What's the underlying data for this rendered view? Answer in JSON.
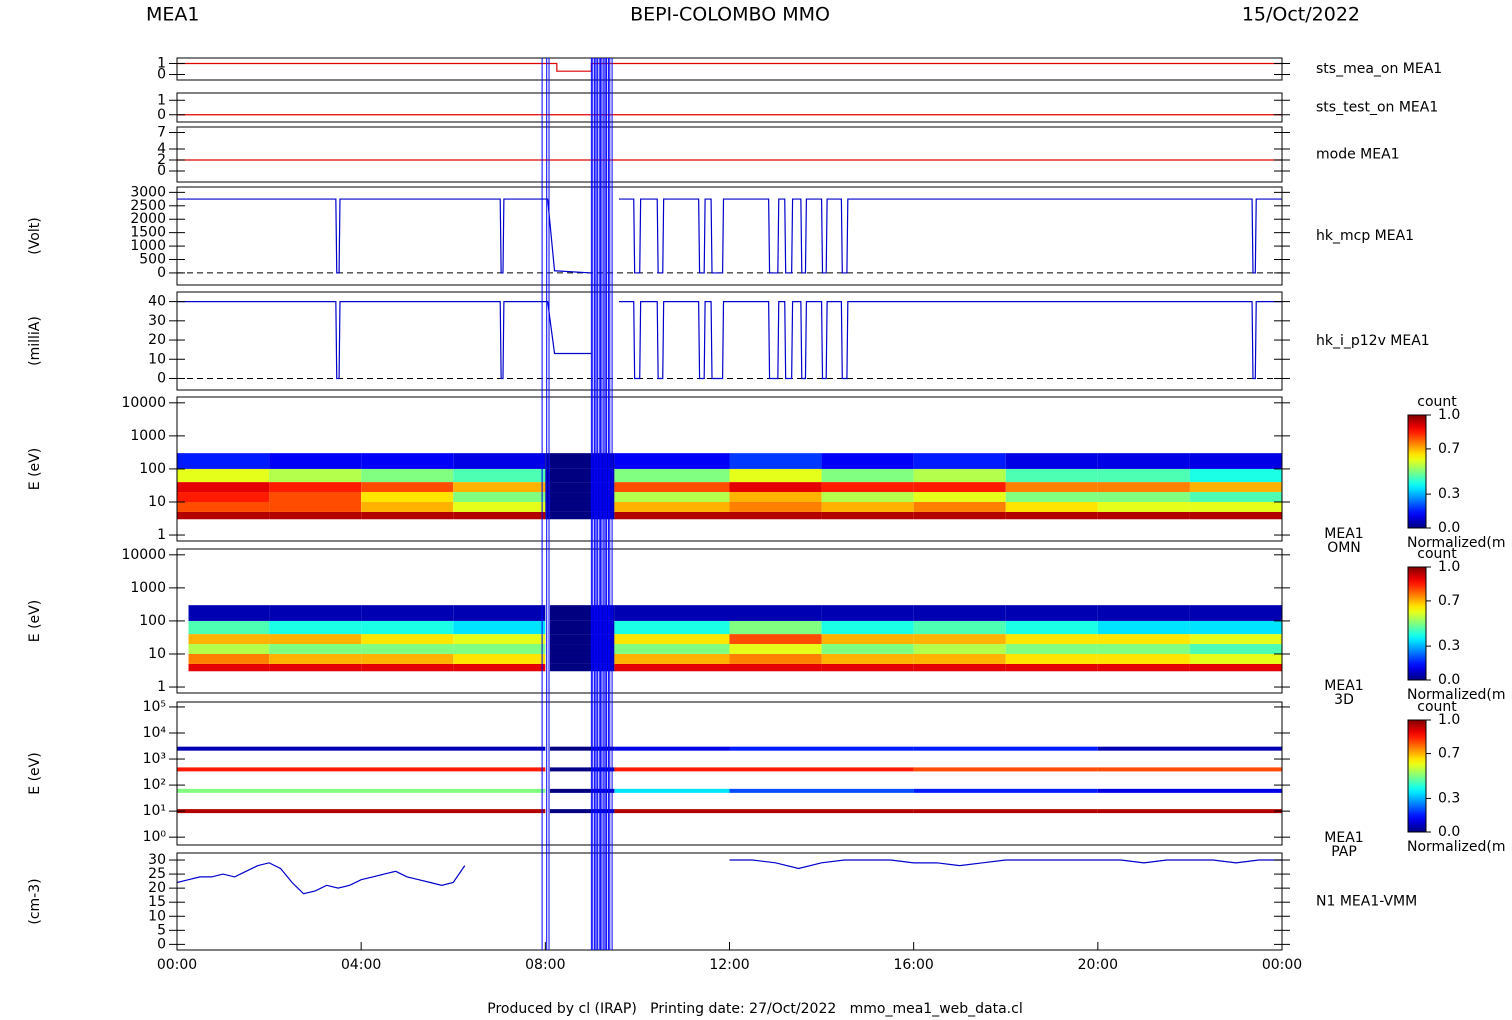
{
  "header": {
    "left": "MEA1",
    "center": "BEPI-COLOMBO MMO",
    "right": "15/Oct/2022"
  },
  "footer": "Produced by cl (IRAP)   Printing date: 27/Oct/2022   mmo_mea1_web_data.cl",
  "time_axis": {
    "xlim": [
      0,
      24
    ],
    "xticks": [
      {
        "value": 0,
        "label": "00:00"
      },
      {
        "value": 4,
        "label": "04:00"
      },
      {
        "value": 8,
        "label": "08:00"
      },
      {
        "value": 12,
        "label": "12:00"
      },
      {
        "value": 16,
        "label": "16:00"
      },
      {
        "value": 20,
        "label": "20:00"
      },
      {
        "value": 24,
        "label": "00:00"
      }
    ]
  },
  "events": {
    "color": "#0000ff",
    "x": [
      7.93,
      8.03,
      8.08,
      9.0,
      9.03,
      9.07,
      9.1,
      9.13,
      9.17,
      9.2,
      9.23,
      9.27,
      9.3,
      9.33,
      9.37,
      9.4,
      9.45
    ]
  },
  "chart_data": [
    {
      "type": "line",
      "label": "sts_mea_on MEA1",
      "label_color": "#e00000",
      "color": "#e00000",
      "ylim": [
        -0.5,
        1.5
      ],
      "yticks": [
        0,
        1
      ],
      "x": [
        0,
        8.25,
        8.25,
        9.0,
        9.0,
        24
      ],
      "values": [
        1,
        1,
        0.3,
        0.3,
        1,
        1
      ]
    },
    {
      "type": "line",
      "label": "sts_test_on MEA1",
      "label_color": "#e00000",
      "color": "#e00000",
      "ylim": [
        -0.5,
        1.5
      ],
      "yticks": [
        0,
        1
      ],
      "x": [
        0,
        24
      ],
      "values": [
        0,
        0
      ]
    },
    {
      "type": "line",
      "label": "mode MEA1",
      "label_color": "#e00000",
      "color": "#e00000",
      "ylim": [
        -2,
        8
      ],
      "yticks": [
        0,
        2,
        4,
        7
      ],
      "x": [
        0,
        24
      ],
      "values": [
        2,
        2
      ]
    },
    {
      "type": "line",
      "label": "hk_mcp MEA1",
      "ylabel": "(Volt)",
      "label_color": "#0000cc",
      "color": "#0000cc",
      "zero_line": true,
      "ylim": [
        -450,
        3200
      ],
      "yticks": [
        0,
        500,
        1000,
        1500,
        2000,
        2500,
        3000
      ],
      "x": [
        0,
        3.45,
        3.47,
        3.52,
        3.54,
        7.02,
        7.04,
        7.08,
        7.1,
        7.95,
        8.05,
        8.2,
        9.0,
        9.2,
        9.6,
        9.92,
        9.94,
        10.05,
        10.07,
        10.43,
        10.45,
        10.55,
        10.57,
        11.33,
        11.35,
        11.45,
        11.47,
        11.6,
        11.62,
        11.85,
        11.87,
        12.85,
        12.87,
        13.05,
        13.07,
        13.2,
        13.22,
        13.35,
        13.37,
        13.55,
        13.57,
        13.65,
        13.67,
        14.0,
        14.02,
        14.1,
        14.12,
        14.43,
        14.45,
        14.55,
        14.57,
        23.35,
        23.37,
        23.42,
        23.44,
        24
      ],
      "values": [
        2750,
        2750,
        0,
        0,
        2750,
        2750,
        0,
        0,
        2750,
        2750,
        2750,
        80,
        0,
        null,
        2750,
        2750,
        0,
        0,
        2750,
        2750,
        0,
        0,
        2750,
        2750,
        0,
        0,
        2750,
        2750,
        0,
        0,
        2750,
        2750,
        0,
        0,
        2750,
        2750,
        0,
        0,
        2750,
        2750,
        0,
        0,
        2750,
        2750,
        0,
        0,
        2750,
        2750,
        0,
        0,
        2750,
        2750,
        0,
        0,
        2750,
        2750
      ]
    },
    {
      "type": "line",
      "label": "hk_i_p12v MEA1",
      "ylabel": "(milliA)",
      "label_color": "#0000cc",
      "color": "#0000cc",
      "zero_line": true,
      "ylim": [
        -6,
        45
      ],
      "yticks": [
        0,
        10,
        20,
        30,
        40
      ],
      "x": [
        0,
        3.45,
        3.47,
        3.52,
        3.54,
        7.02,
        7.04,
        7.08,
        7.1,
        7.95,
        8.05,
        8.2,
        9.0,
        9.2,
        9.6,
        9.92,
        9.94,
        10.05,
        10.07,
        10.43,
        10.45,
        10.55,
        10.57,
        11.33,
        11.35,
        11.45,
        11.47,
        11.6,
        11.62,
        11.85,
        11.87,
        12.85,
        12.87,
        13.05,
        13.07,
        13.2,
        13.22,
        13.35,
        13.37,
        13.55,
        13.57,
        13.65,
        13.67,
        14.0,
        14.02,
        14.1,
        14.12,
        14.43,
        14.45,
        14.55,
        14.57,
        23.35,
        23.37,
        23.42,
        23.44,
        24
      ],
      "values": [
        40,
        40,
        0,
        0,
        40,
        40,
        0,
        0,
        40,
        40,
        40,
        13,
        13,
        null,
        40,
        40,
        0,
        0,
        40,
        40,
        0,
        0,
        40,
        40,
        0,
        0,
        40,
        40,
        0,
        0,
        40,
        40,
        0,
        0,
        40,
        40,
        0,
        0,
        40,
        40,
        0,
        0,
        40,
        40,
        0,
        0,
        40,
        40,
        0,
        0,
        40,
        40,
        0,
        0,
        40,
        40
      ]
    },
    {
      "type": "heatmap",
      "label": [
        "MEA1",
        "OMN"
      ],
      "ylabel": "E (eV)",
      "log": true,
      "ylim": [
        0.66,
        15000
      ],
      "yticks": [
        1,
        10,
        100,
        1000,
        10000
      ],
      "x_edges": [
        0,
        2,
        4,
        6,
        8,
        8.1,
        9,
        9.5,
        12,
        14,
        16,
        18,
        20,
        22,
        24
      ],
      "y_edges": [
        3,
        5,
        10,
        20,
        40,
        100,
        300
      ],
      "z": [
        [
          0.95,
          0.95,
          0.95,
          0.95,
          0,
          0,
          0.05,
          0.95,
          0.95,
          0.95,
          0.95,
          0.95,
          0.95,
          0.95
        ],
        [
          0.8,
          0.8,
          0.7,
          0.6,
          0,
          0,
          0.05,
          0.7,
          0.75,
          0.7,
          0.75,
          0.65,
          0.6,
          0.6
        ],
        [
          0.85,
          0.8,
          0.65,
          0.5,
          0,
          0,
          0.05,
          0.55,
          0.7,
          0.55,
          0.6,
          0.5,
          0.5,
          0.45
        ],
        [
          0.9,
          0.85,
          0.8,
          0.7,
          0,
          0,
          0.05,
          0.8,
          0.9,
          0.85,
          0.85,
          0.75,
          0.75,
          0.7
        ],
        [
          0.6,
          0.55,
          0.5,
          0.45,
          0,
          0,
          0.05,
          0.5,
          0.6,
          0.5,
          0.55,
          0.45,
          0.45,
          0.4
        ],
        [
          0.15,
          0.12,
          0.12,
          0.1,
          0,
          0,
          0.05,
          0.12,
          0.18,
          0.12,
          0.15,
          0.1,
          0.1,
          0.1
        ]
      ],
      "colorbar": {
        "title": "count",
        "label": "Normalized(m",
        "zlim": [
          0,
          1
        ],
        "ticks": [
          {
            "value": 0,
            "label": "0.0"
          },
          0.3,
          0.7,
          {
            "value": 1,
            "label": "1.0"
          }
        ]
      }
    },
    {
      "type": "heatmap",
      "label": [
        "MEA1",
        "3D"
      ],
      "ylabel": "E (eV)",
      "log": true,
      "ylim": [
        0.66,
        15000
      ],
      "yticks": [
        1,
        10,
        100,
        1000,
        10000
      ],
      "x_edges": [
        0.25,
        2,
        4,
        6,
        8,
        8.1,
        9,
        9.5,
        12,
        14,
        16,
        18,
        20,
        22,
        24
      ],
      "y_edges": [
        3,
        5,
        10,
        20,
        40,
        100,
        300
      ],
      "z": [
        [
          0.9,
          0.9,
          0.9,
          0.9,
          null,
          0,
          0.05,
          0.9,
          0.9,
          0.9,
          0.9,
          0.9,
          0.9,
          0.9
        ],
        [
          0.75,
          0.7,
          0.7,
          0.65,
          null,
          0,
          0.05,
          0.7,
          0.75,
          0.7,
          0.7,
          0.65,
          0.65,
          0.6
        ],
        [
          0.55,
          0.5,
          0.5,
          0.5,
          null,
          0,
          0.05,
          0.5,
          0.6,
          0.5,
          0.55,
          0.5,
          0.5,
          0.45
        ],
        [
          0.7,
          0.7,
          0.65,
          0.6,
          null,
          0,
          0.05,
          0.65,
          0.8,
          0.7,
          0.7,
          0.65,
          0.65,
          0.6
        ],
        [
          0.45,
          0.4,
          0.4,
          0.35,
          null,
          0,
          0.05,
          0.4,
          0.5,
          0.4,
          0.45,
          0.4,
          0.35,
          0.35
        ],
        [
          0.05,
          0.05,
          0.05,
          0.05,
          null,
          0,
          0.05,
          0.05,
          0.05,
          0.05,
          0.05,
          0.05,
          0.05,
          0.05
        ]
      ],
      "colorbar": {
        "title": "count",
        "label": "Normalized(m",
        "zlim": [
          0,
          1
        ],
        "ticks": [
          {
            "value": 0,
            "label": "0.0"
          },
          0.3,
          0.7,
          {
            "value": 1,
            "label": "1.0"
          }
        ]
      }
    },
    {
      "type": "heatmap",
      "label": [
        "MEA1",
        "PAP"
      ],
      "ylabel": "E (eV)",
      "log": true,
      "ylim": [
        0.5,
        155000
      ],
      "yticks": [
        {
          "value": 1,
          "label": "10⁰"
        },
        {
          "value": 10,
          "label": "10¹"
        },
        {
          "value": 100,
          "label": "10²"
        },
        {
          "value": 1000,
          "label": "10³"
        },
        {
          "value": 10000,
          "label": "10⁴"
        },
        {
          "value": 100000,
          "label": "10⁵"
        }
      ],
      "x_edges": [
        0,
        8,
        8.1,
        9,
        9.5,
        12,
        16,
        20,
        24
      ],
      "levels": [
        10,
        60,
        400,
        2500
      ],
      "z": [
        [
          0.95,
          null,
          0,
          0.05,
          0.95,
          0.95,
          0.95,
          0.95
        ],
        [
          0.5,
          null,
          0,
          0.05,
          0.35,
          0.2,
          0.15,
          0.1
        ],
        [
          0.85,
          null,
          0,
          0.05,
          0.85,
          0.85,
          0.8,
          0.8
        ],
        [
          0.05,
          null,
          0,
          0.05,
          0.1,
          0.15,
          0.15,
          0.05
        ]
      ],
      "colorbar": {
        "title": "count",
        "label": "Normalized(m",
        "zlim": [
          0,
          1
        ],
        "ticks": [
          {
            "value": 0,
            "label": "0.0"
          },
          0.3,
          0.7,
          {
            "value": 1,
            "label": "1.0"
          }
        ]
      }
    },
    {
      "type": "line",
      "label": "N1 MEA1-VMM",
      "ylabel": "(cm-3)",
      "label_color": "#0000cc",
      "color": "#0000cc",
      "ylim": [
        -2,
        32.5
      ],
      "yticks": [
        0,
        5,
        10,
        15,
        20,
        25,
        30
      ],
      "x": [
        0,
        0.25,
        0.5,
        0.75,
        1,
        1.25,
        1.5,
        1.75,
        2,
        2.25,
        2.5,
        2.75,
        3,
        3.25,
        3.5,
        3.75,
        4,
        4.25,
        4.5,
        4.75,
        5,
        5.25,
        5.5,
        5.75,
        6,
        6.25,
        9,
        12,
        12.5,
        13,
        13.5,
        14,
        14.5,
        15,
        15.5,
        16,
        16.5,
        17,
        17.5,
        18,
        18.5,
        19,
        19.5,
        20,
        20.5,
        21,
        21.5,
        22,
        22.5,
        23,
        23.5,
        24
      ],
      "values": [
        22,
        23,
        24,
        24,
        25,
        24,
        26,
        28,
        29,
        27,
        22,
        18,
        19,
        21,
        20,
        21,
        23,
        24,
        25,
        26,
        24,
        23,
        22,
        21,
        22,
        28,
        null,
        30,
        30,
        29,
        27,
        29,
        30,
        30,
        30,
        29,
        29,
        28,
        29,
        30,
        30,
        30,
        30,
        30,
        30,
        29,
        30,
        30,
        30,
        29,
        30,
        30
      ]
    }
  ]
}
